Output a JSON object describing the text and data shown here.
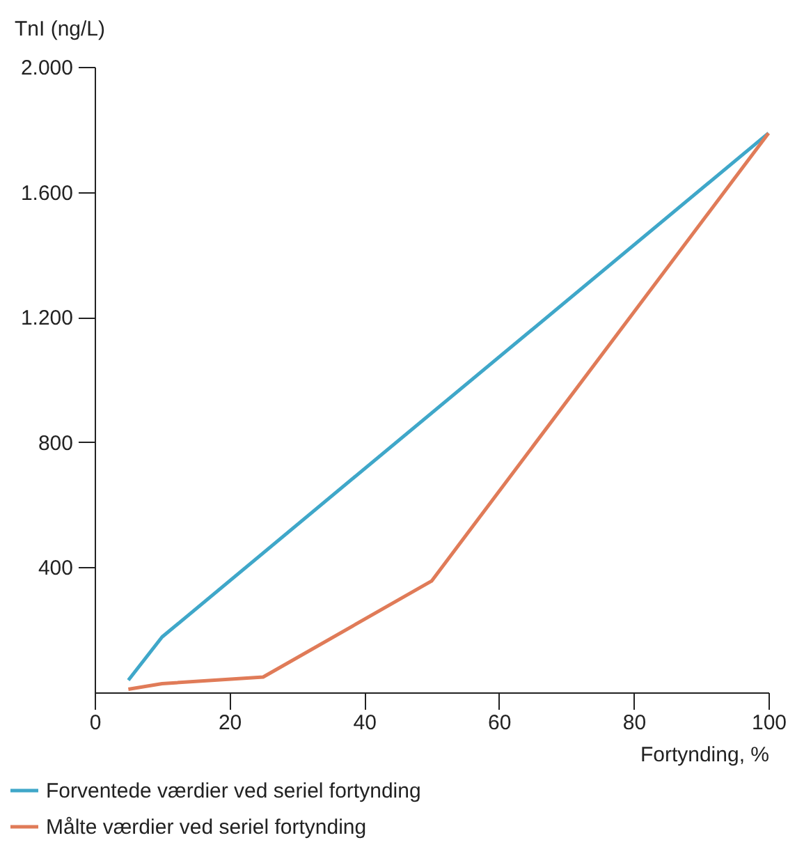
{
  "chart_data": {
    "type": "line",
    "xlabel": "Fortynding, %",
    "ylabel": "TnI (ng/L)",
    "x": [
      5,
      10,
      100
    ],
    "series": [
      {
        "name": "Forventede værdier ved seriel fortynding",
        "color": "#3fa7c9",
        "values": [
          39,
          177,
          1788
        ]
      },
      {
        "name": "Målte værdier ved seriel fortynding",
        "color": "#e07b58",
        "x": [
          5,
          10,
          25,
          50,
          100
        ],
        "values": [
          10,
          28,
          49,
          356,
          1788
        ]
      }
    ],
    "xlim": [
      0,
      100
    ],
    "xticks": [
      0,
      20,
      40,
      60,
      80,
      100
    ],
    "ylim": [
      0,
      2000
    ],
    "yticks": [
      {
        "value": 400,
        "label": "400"
      },
      {
        "value": 800,
        "label": "800"
      },
      {
        "value": 1200,
        "label": "1.200"
      },
      {
        "value": 1600,
        "label": "1.600"
      },
      {
        "value": 2000,
        "label": "2.000"
      }
    ],
    "grid": false,
    "legend": "bottom",
    "marker": "none",
    "line_style": "solid"
  }
}
